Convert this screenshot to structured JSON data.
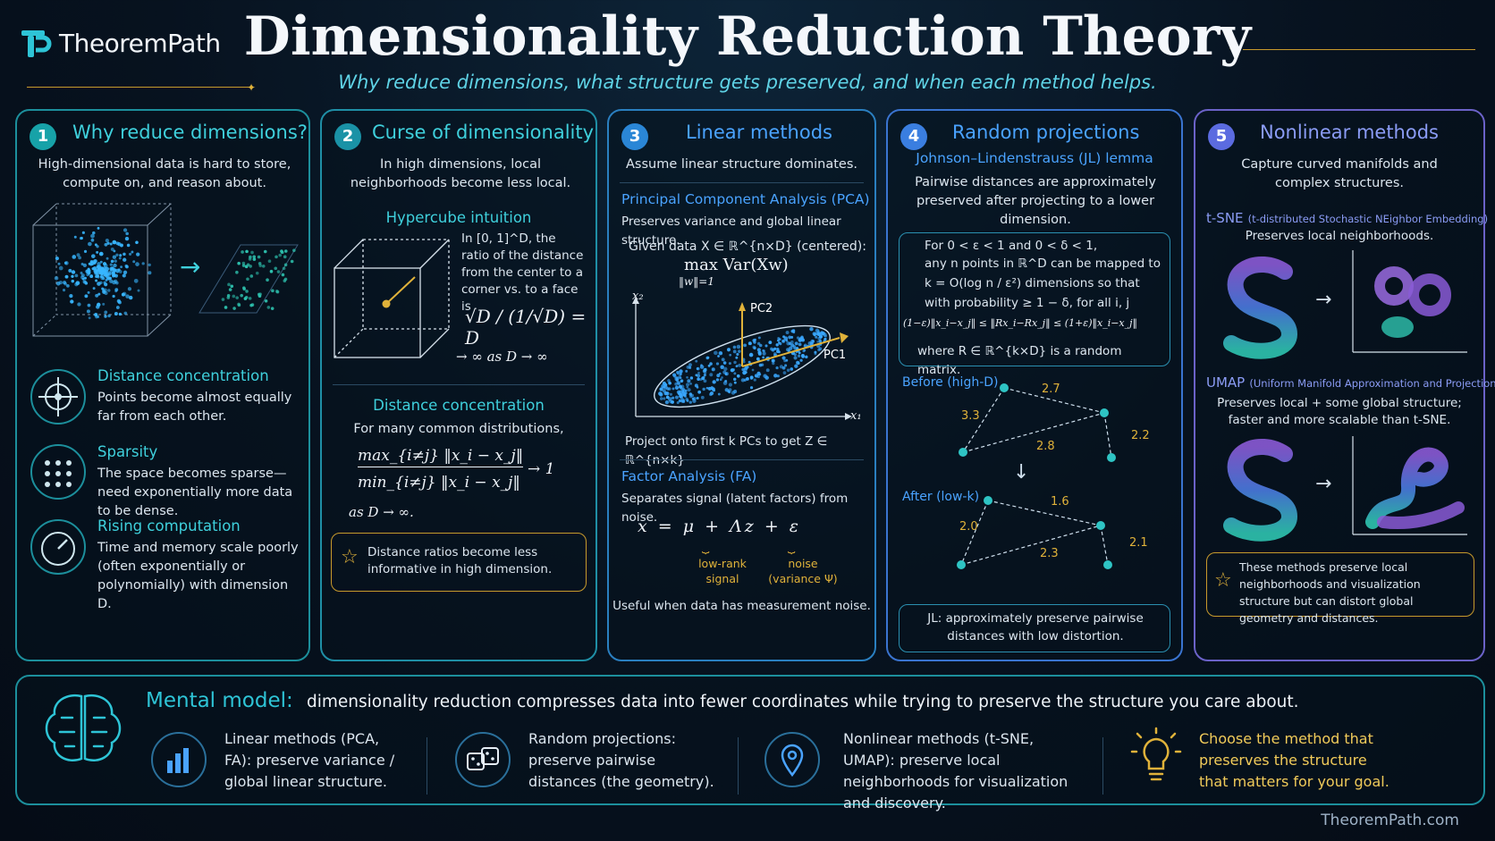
{
  "header": {
    "brand": "TheoremPath",
    "title": "Dimensionality Reduction Theory",
    "subtitle": "Why reduce dimensions, what structure gets preserved, and when each method helps."
  },
  "panels": {
    "p1": {
      "num": "1",
      "title": "Why reduce dimensions?",
      "intro": "High-dimensional data is hard to store, compute on, and reason about.",
      "items": [
        {
          "title": "Distance concentration",
          "text": "Points become almost equally far from each other."
        },
        {
          "title": "Sparsity",
          "text": "The space becomes sparse—need exponentially more data to be dense."
        },
        {
          "title": "Rising computation",
          "text": "Time and memory scale poorly (often exponentially or polynomially) with dimension D."
        }
      ]
    },
    "p2": {
      "num": "2",
      "title": "Curse of dimensionality",
      "intro": "In high dimensions, local neighborhoods become less local.",
      "hyper_title": "Hypercube intuition",
      "hyper_text": "In [0, 1]^D, the ratio of the distance from the center to a corner vs. to a face is",
      "hyper_frac": "√D / (1/√D) = D",
      "hyper_limit": "→ ∞ as D → ∞",
      "dc_title": "Distance concentration",
      "dc_text": "For many common distributions,",
      "dc_num": "max_{i≠j} ‖x_i − x_j‖",
      "dc_den": "min_{i≠j} ‖x_i − x_j‖",
      "dc_arrow": "→ 1",
      "dc_as": "as D → ∞.",
      "note": "Distance ratios become less informative in high dimension."
    },
    "p3": {
      "num": "3",
      "title": "Linear methods",
      "intro": "Assume linear structure dominates.",
      "pca_title": "Principal Component Analysis (PCA)",
      "pca_text": "Preserves variance and global linear structure.",
      "given": "Given data X ∈ ℝ^{n×D} (centered):",
      "objective": "max Var(Xw)",
      "constraint": "‖w‖=1",
      "pc1": "PC1",
      "pc2": "PC2",
      "x1": "x₁",
      "x2": "x₂",
      "project": "Project onto first k PCs to get Z ∈ ℝ^{n×k}",
      "fa_title": "Factor Analysis (FA)",
      "fa_text": "Separates signal (latent factors) from noise.",
      "fa_eq": "x = μ + Λz + ε",
      "fa_label1": "low-rank signal",
      "fa_label2": "noise (variance Ψ)",
      "fa_note": "Useful when data has measurement noise."
    },
    "p4": {
      "num": "4",
      "title": "Random projections",
      "jl_title": "Johnson–Lindenstrauss (JL) lemma",
      "intro": "Pairwise distances are approximately preserved after projecting to a lower dimension.",
      "lemma1": "For 0 < ε < 1 and 0 < δ < 1,",
      "lemma2": "any n points in ℝ^D can be mapped to",
      "lemma3": "k = O(log n / ε²) dimensions so that",
      "lemma4": "with probability ≥ 1 − δ, for all i, j",
      "ineq": "(1−ε)‖x_i−x_j‖ ≤ ‖Rx_i−Rx_j‖ ≤ (1+ε)‖x_i−x_j‖",
      "where": "where R ∈ ℝ^{k×D} is a random matrix.",
      "before": "Before (high-D)",
      "after": "After (low-k)",
      "before_d": [
        "2.7",
        "3.3",
        "2.8",
        "2.2"
      ],
      "after_d": [
        "1.6",
        "2.0",
        "2.3",
        "2.1"
      ],
      "note": "JL: approximately preserve pairwise distances with low distortion."
    },
    "p5": {
      "num": "5",
      "title": "Nonlinear methods",
      "intro": "Capture curved manifolds and complex structures.",
      "tsne_name": "t-SNE",
      "tsne_full": "(t-distributed Stochastic NEighbor Embedding)",
      "tsne_text": "Preserves local neighborhoods.",
      "umap_name": "UMAP",
      "umap_full": "(Uniform Manifold Approximation and Projection)",
      "umap_text": "Preserves local + some global structure; faster and more scalable than t-SNE.",
      "note": "These methods preserve local neighborhoods and visualization structure but can distort global geometry and distances."
    }
  },
  "bottom": {
    "mm_label": "Mental model:",
    "mm_text": "dimensionality reduction compresses data into fewer coordinates while trying to preserve the structure you care about.",
    "items": [
      "Linear methods (PCA, FA): preserve variance / global linear structure.",
      "Random projections: preserve pairwise distances (the geometry).",
      "Nonlinear methods (t-SNE, UMAP): preserve local neighborhoods for visualization and discovery.",
      "Choose the method that preserves the structure that matters for your goal."
    ]
  },
  "footer": "TheoremPath.com",
  "colors": {
    "teal": "#2ec4d6",
    "cyan": "#5fd3e6",
    "blue": "#4aa3ff",
    "purple": "#8b7cf0",
    "gold": "#e0b23a"
  }
}
